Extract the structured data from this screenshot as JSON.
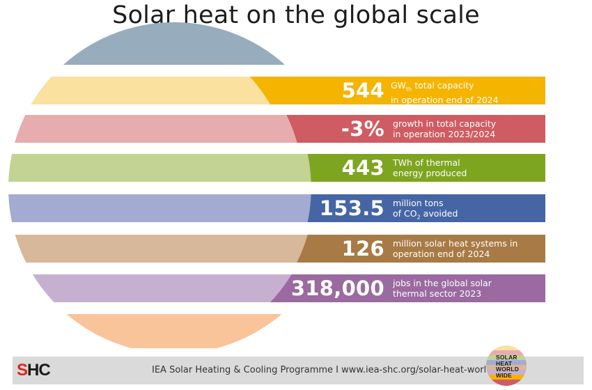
{
  "title": "Solar heat on the global scale",
  "stats": [
    {
      "value": "544",
      "desc_lines": [
        "GWth total capacity",
        "in operation end of 2024"
      ],
      "color": "#f5b400",
      "pale": "#fae1a0"
    },
    {
      "value": "-3%",
      "desc_lines": [
        "growth in total capacity",
        "in operation 2023/2024"
      ],
      "color": "#cf5c62",
      "pale": "#e7adae"
    },
    {
      "value": "443",
      "desc_lines": [
        "TWh of thermal",
        "energy produced"
      ],
      "color": "#7ea520",
      "pale": "#c2d393"
    },
    {
      "value": "153.5",
      "desc_lines": [
        "million tons",
        "of CO2 avoided"
      ],
      "color": "#4565a4",
      "pale": "#a3abd3"
    },
    {
      "value": "126",
      "desc_lines": [
        "million solar heat systems in",
        "operation end of 2024"
      ],
      "color": "#a87a45",
      "pale": "#d7b89a"
    },
    {
      "value": "318,000",
      "desc_lines": [
        "jobs in the global solar",
        "thermal sector 2023"
      ],
      "color": "#9a6aa0",
      "pale": "#c6b0d0"
    }
  ],
  "disc_top_color": "#97acbd",
  "disc_bottom_color": "#f9c499",
  "footer": {
    "logo_s": "S",
    "logo_hc": "HC",
    "text": "IEA Solar Heating & Cooling Programme I www.iea-shc.org/solar-heat-worldwide",
    "badge_lines": [
      "SOLAR",
      "HEAT",
      "WORLD",
      "WIDE"
    ]
  }
}
